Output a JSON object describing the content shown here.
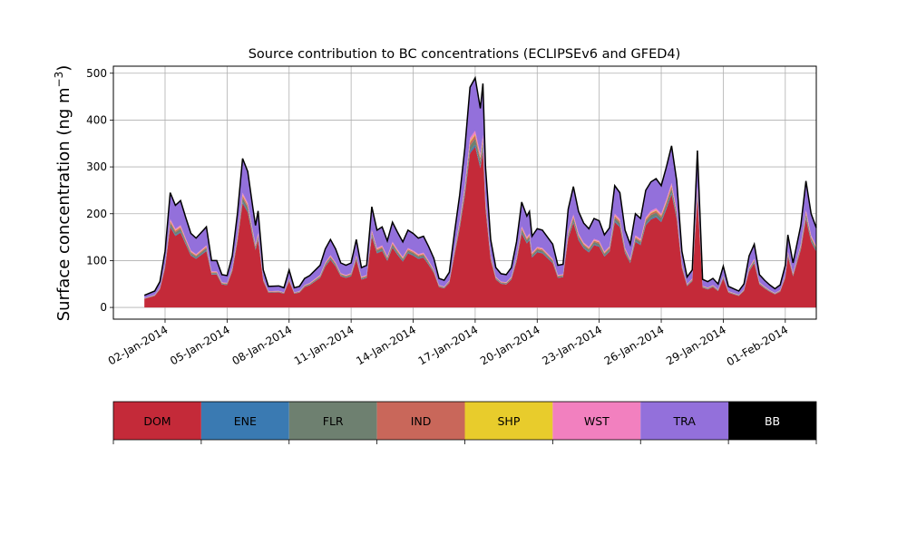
{
  "chart_data": {
    "type": "area",
    "stacked": true,
    "title": "Source contribution to BC concentrations (ECLIPSEv6 and GFED4)",
    "ylabel": "Surface concentration (ng m",
    "ylabel_sup": "−3",
    "ylabel_end": ")",
    "xlabel": "",
    "x_range": [
      "2013-12-30T12:00",
      "2014-02-02T12:00"
    ],
    "ylim": [
      -25,
      515
    ],
    "yticks": [
      0,
      100,
      200,
      300,
      400,
      500
    ],
    "xticks": [
      {
        "date": "2014-01-02",
        "label": "02-Jan-2014"
      },
      {
        "date": "2014-01-05",
        "label": "05-Jan-2014"
      },
      {
        "date": "2014-01-08",
        "label": "08-Jan-2014"
      },
      {
        "date": "2014-01-11",
        "label": "11-Jan-2014"
      },
      {
        "date": "2014-01-14",
        "label": "14-Jan-2014"
      },
      {
        "date": "2014-01-17",
        "label": "17-Jan-2014"
      },
      {
        "date": "2014-01-20",
        "label": "20-Jan-2014"
      },
      {
        "date": "2014-01-23",
        "label": "23-Jan-2014"
      },
      {
        "date": "2014-01-26",
        "label": "26-Jan-2014"
      },
      {
        "date": "2014-01-29",
        "label": "29-Jan-2014"
      },
      {
        "date": "2014-02-01",
        "label": "01-Feb-2014"
      }
    ],
    "grid": true,
    "legend_placement": "bottom",
    "total_points": [
      [
        "2014-01-01T00:00",
        26
      ],
      [
        "2014-01-01T12:00",
        35
      ],
      [
        "2014-01-01T18:00",
        55
      ],
      [
        "2014-01-02T00:00",
        120
      ],
      [
        "2014-01-02T06:00",
        245
      ],
      [
        "2014-01-02T12:00",
        218
      ],
      [
        "2014-01-02T18:00",
        228
      ],
      [
        "2014-01-03T00:00",
        192
      ],
      [
        "2014-01-03T06:00",
        158
      ],
      [
        "2014-01-03T12:00",
        148
      ],
      [
        "2014-01-03T18:00",
        160
      ],
      [
        "2014-01-04T00:00",
        172
      ],
      [
        "2014-01-04T06:00",
        100
      ],
      [
        "2014-01-04T12:00",
        100
      ],
      [
        "2014-01-04T18:00",
        70
      ],
      [
        "2014-01-05T00:00",
        68
      ],
      [
        "2014-01-05T06:00",
        110
      ],
      [
        "2014-01-05T12:00",
        200
      ],
      [
        "2014-01-05T18:00",
        318
      ],
      [
        "2014-01-06T00:00",
        290
      ],
      [
        "2014-01-06T06:00",
        212
      ],
      [
        "2014-01-06T09:00",
        175
      ],
      [
        "2014-01-06T12:00",
        206
      ],
      [
        "2014-01-06T18:00",
        80
      ],
      [
        "2014-01-07T00:00",
        45
      ],
      [
        "2014-01-07T12:00",
        46
      ],
      [
        "2014-01-07T18:00",
        42
      ],
      [
        "2014-01-08T00:00",
        80
      ],
      [
        "2014-01-08T06:00",
        42
      ],
      [
        "2014-01-08T12:00",
        45
      ],
      [
        "2014-01-08T18:00",
        62
      ],
      [
        "2014-01-09T00:00",
        68
      ],
      [
        "2014-01-09T12:00",
        90
      ],
      [
        "2014-01-09T18:00",
        125
      ],
      [
        "2014-01-10T00:00",
        145
      ],
      [
        "2014-01-10T06:00",
        125
      ],
      [
        "2014-01-10T12:00",
        95
      ],
      [
        "2014-01-10T18:00",
        90
      ],
      [
        "2014-01-11T00:00",
        95
      ],
      [
        "2014-01-11T06:00",
        145
      ],
      [
        "2014-01-11T12:00",
        85
      ],
      [
        "2014-01-11T18:00",
        90
      ],
      [
        "2014-01-12T00:00",
        215
      ],
      [
        "2014-01-12T06:00",
        165
      ],
      [
        "2014-01-12T12:00",
        172
      ],
      [
        "2014-01-12T18:00",
        142
      ],
      [
        "2014-01-13T00:00",
        182
      ],
      [
        "2014-01-13T06:00",
        160
      ],
      [
        "2014-01-13T12:00",
        140
      ],
      [
        "2014-01-13T18:00",
        165
      ],
      [
        "2014-01-14T00:00",
        158
      ],
      [
        "2014-01-14T06:00",
        148
      ],
      [
        "2014-01-14T12:00",
        152
      ],
      [
        "2014-01-14T18:00",
        130
      ],
      [
        "2014-01-15T00:00",
        105
      ],
      [
        "2014-01-15T06:00",
        62
      ],
      [
        "2014-01-15T12:00",
        58
      ],
      [
        "2014-01-15T18:00",
        75
      ],
      [
        "2014-01-16T00:00",
        160
      ],
      [
        "2014-01-16T06:00",
        240
      ],
      [
        "2014-01-16T12:00",
        340
      ],
      [
        "2014-01-16T18:00",
        470
      ],
      [
        "2014-01-17T00:00",
        490
      ],
      [
        "2014-01-17T06:00",
        425
      ],
      [
        "2014-01-17T09:00",
        478
      ],
      [
        "2014-01-17T12:00",
        300
      ],
      [
        "2014-01-17T18:00",
        145
      ],
      [
        "2014-01-18T00:00",
        85
      ],
      [
        "2014-01-18T06:00",
        72
      ],
      [
        "2014-01-18T12:00",
        70
      ],
      [
        "2014-01-18T18:00",
        85
      ],
      [
        "2014-01-19T00:00",
        140
      ],
      [
        "2014-01-19T06:00",
        225
      ],
      [
        "2014-01-19T12:00",
        195
      ],
      [
        "2014-01-19T15:00",
        205
      ],
      [
        "2014-01-19T18:00",
        152
      ],
      [
        "2014-01-20T00:00",
        168
      ],
      [
        "2014-01-20T06:00",
        165
      ],
      [
        "2014-01-20T12:00",
        150
      ],
      [
        "2014-01-20T18:00",
        135
      ],
      [
        "2014-01-21T00:00",
        90
      ],
      [
        "2014-01-21T06:00",
        92
      ],
      [
        "2014-01-21T12:00",
        210
      ],
      [
        "2014-01-21T18:00",
        258
      ],
      [
        "2014-01-22T00:00",
        205
      ],
      [
        "2014-01-22T06:00",
        180
      ],
      [
        "2014-01-22T12:00",
        168
      ],
      [
        "2014-01-22T18:00",
        190
      ],
      [
        "2014-01-23T00:00",
        185
      ],
      [
        "2014-01-23T06:00",
        155
      ],
      [
        "2014-01-23T12:00",
        170
      ],
      [
        "2014-01-23T18:00",
        260
      ],
      [
        "2014-01-24T00:00",
        245
      ],
      [
        "2014-01-24T06:00",
        165
      ],
      [
        "2014-01-24T12:00",
        135
      ],
      [
        "2014-01-24T18:00",
        200
      ],
      [
        "2014-01-25T00:00",
        190
      ],
      [
        "2014-01-25T06:00",
        250
      ],
      [
        "2014-01-25T12:00",
        268
      ],
      [
        "2014-01-25T18:00",
        275
      ],
      [
        "2014-01-26T00:00",
        260
      ],
      [
        "2014-01-26T06:00",
        300
      ],
      [
        "2014-01-26T12:00",
        345
      ],
      [
        "2014-01-26T18:00",
        270
      ],
      [
        "2014-01-27T00:00",
        120
      ],
      [
        "2014-01-27T06:00",
        65
      ],
      [
        "2014-01-27T12:00",
        80
      ],
      [
        "2014-01-27T18:00",
        335
      ],
      [
        "2014-01-28T00:00",
        60
      ],
      [
        "2014-01-28T06:00",
        55
      ],
      [
        "2014-01-28T12:00",
        62
      ],
      [
        "2014-01-28T18:00",
        50
      ],
      [
        "2014-01-29T00:00",
        88
      ],
      [
        "2014-01-29T06:00",
        45
      ],
      [
        "2014-01-29T12:00",
        40
      ],
      [
        "2014-01-29T18:00",
        35
      ],
      [
        "2014-01-30T00:00",
        50
      ],
      [
        "2014-01-30T06:00",
        110
      ],
      [
        "2014-01-30T12:00",
        135
      ],
      [
        "2014-01-30T18:00",
        70
      ],
      [
        "2014-01-31T00:00",
        58
      ],
      [
        "2014-01-31T06:00",
        48
      ],
      [
        "2014-01-31T12:00",
        40
      ],
      [
        "2014-01-31T18:00",
        48
      ],
      [
        "2014-02-01T00:00",
        90
      ],
      [
        "2014-02-01T03:00",
        155
      ],
      [
        "2014-02-01T09:00",
        95
      ],
      [
        "2014-02-01T18:00",
        175
      ],
      [
        "2014-02-02T00:00",
        270
      ],
      [
        "2014-02-02T06:00",
        200
      ],
      [
        "2014-02-02T12:00",
        170
      ]
    ],
    "series": [
      {
        "name": "DOM",
        "color": "#c42a39"
      },
      {
        "name": "ENE",
        "color": "#3a7ab2"
      },
      {
        "name": "FLR",
        "color": "#6e8070"
      },
      {
        "name": "IND",
        "color": "#c9675a"
      },
      {
        "name": "SHP",
        "color": "#e8cc2c"
      },
      {
        "name": "WST",
        "color": "#f280bf"
      },
      {
        "name": "TRA",
        "color": "#9370db"
      },
      {
        "name": "BB",
        "color": "#000000"
      }
    ]
  }
}
